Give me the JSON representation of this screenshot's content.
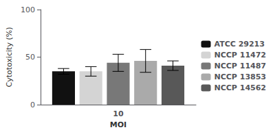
{
  "chart_data": {
    "type": "bar",
    "xlabel": "MOI",
    "ylabel": "Cytotoxicity (%)",
    "categories": [
      "10"
    ],
    "series": [
      {
        "name": "ATCC 29213",
        "color": "#111111",
        "values": [
          35
        ],
        "errors": [
          3
        ]
      },
      {
        "name": "NCCP 11472",
        "color": "#d4d4d4",
        "values": [
          35
        ],
        "errors": [
          5
        ]
      },
      {
        "name": "NCCP 11487",
        "color": "#787878",
        "values": [
          44
        ],
        "errors": [
          9
        ]
      },
      {
        "name": "NCCP 13853",
        "color": "#aaaaaa",
        "values": [
          46
        ],
        "errors": [
          12
        ]
      },
      {
        "name": "NCCP 14562",
        "color": "#585858",
        "values": [
          41
        ],
        "errors": [
          5
        ]
      }
    ],
    "ylim": [
      0,
      100
    ],
    "yticks": [
      0,
      50,
      100
    ],
    "grid": false,
    "legend": "right"
  }
}
